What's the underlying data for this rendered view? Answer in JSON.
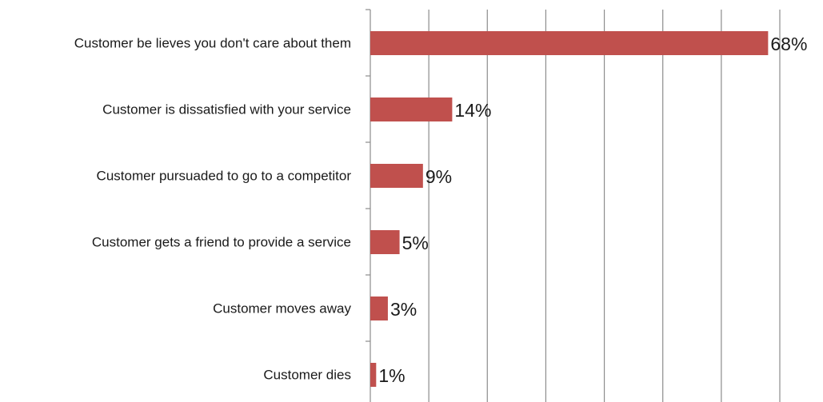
{
  "chart_data": {
    "type": "bar",
    "orientation": "horizontal",
    "categories": [
      "Customer be lieves you don't care about them",
      "Customer is dissatisfied with your service",
      "Customer pursuaded to go to a competitor",
      "Customer gets a friend to provide a service",
      "Customer moves away",
      "Customer dies"
    ],
    "values": [
      68,
      14,
      9,
      5,
      3,
      1
    ],
    "data_labels": [
      "68%",
      "14%",
      "9%",
      "5%",
      "3%",
      "1%"
    ],
    "xlim": [
      0,
      70
    ],
    "x_gridline_step": 10,
    "grid": true,
    "legend": "none",
    "colors": {
      "bar": "#c0504d",
      "gridline": "#8c8c8c",
      "axis": "#8c8c8c",
      "text": "#1a1a1a"
    }
  }
}
